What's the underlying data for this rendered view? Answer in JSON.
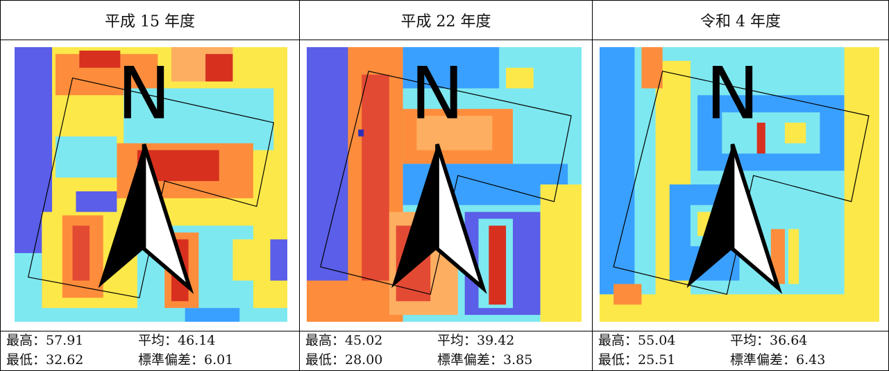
{
  "panels": [
    {
      "title": "平成 15 年度",
      "max_label": "最高：57.91",
      "mean_label": "平均：46.14",
      "min_label": "最低：32.62",
      "std_label": "標準偏差：6.01",
      "north": "N"
    },
    {
      "title": "平成 22 年度",
      "max_label": "最高：45.02",
      "mean_label": "平均：39.42",
      "min_label": "最低：28.00",
      "std_label": "標準偏差：3.85",
      "north": "N"
    },
    {
      "title": "令和 4 年度",
      "max_label": "最高：55.04",
      "mean_label": "平均：36.64",
      "min_label": "最低：25.51",
      "std_label": "標準偏差：6.43",
      "north": "N"
    }
  ],
  "colors": {
    "hot": "#d7301f",
    "warm": "#fd8d3c",
    "mid": "#f7f24a",
    "cool": "#7ee8f0",
    "cold": "#3aa0ff",
    "coldest": "#5a5ee8"
  }
}
